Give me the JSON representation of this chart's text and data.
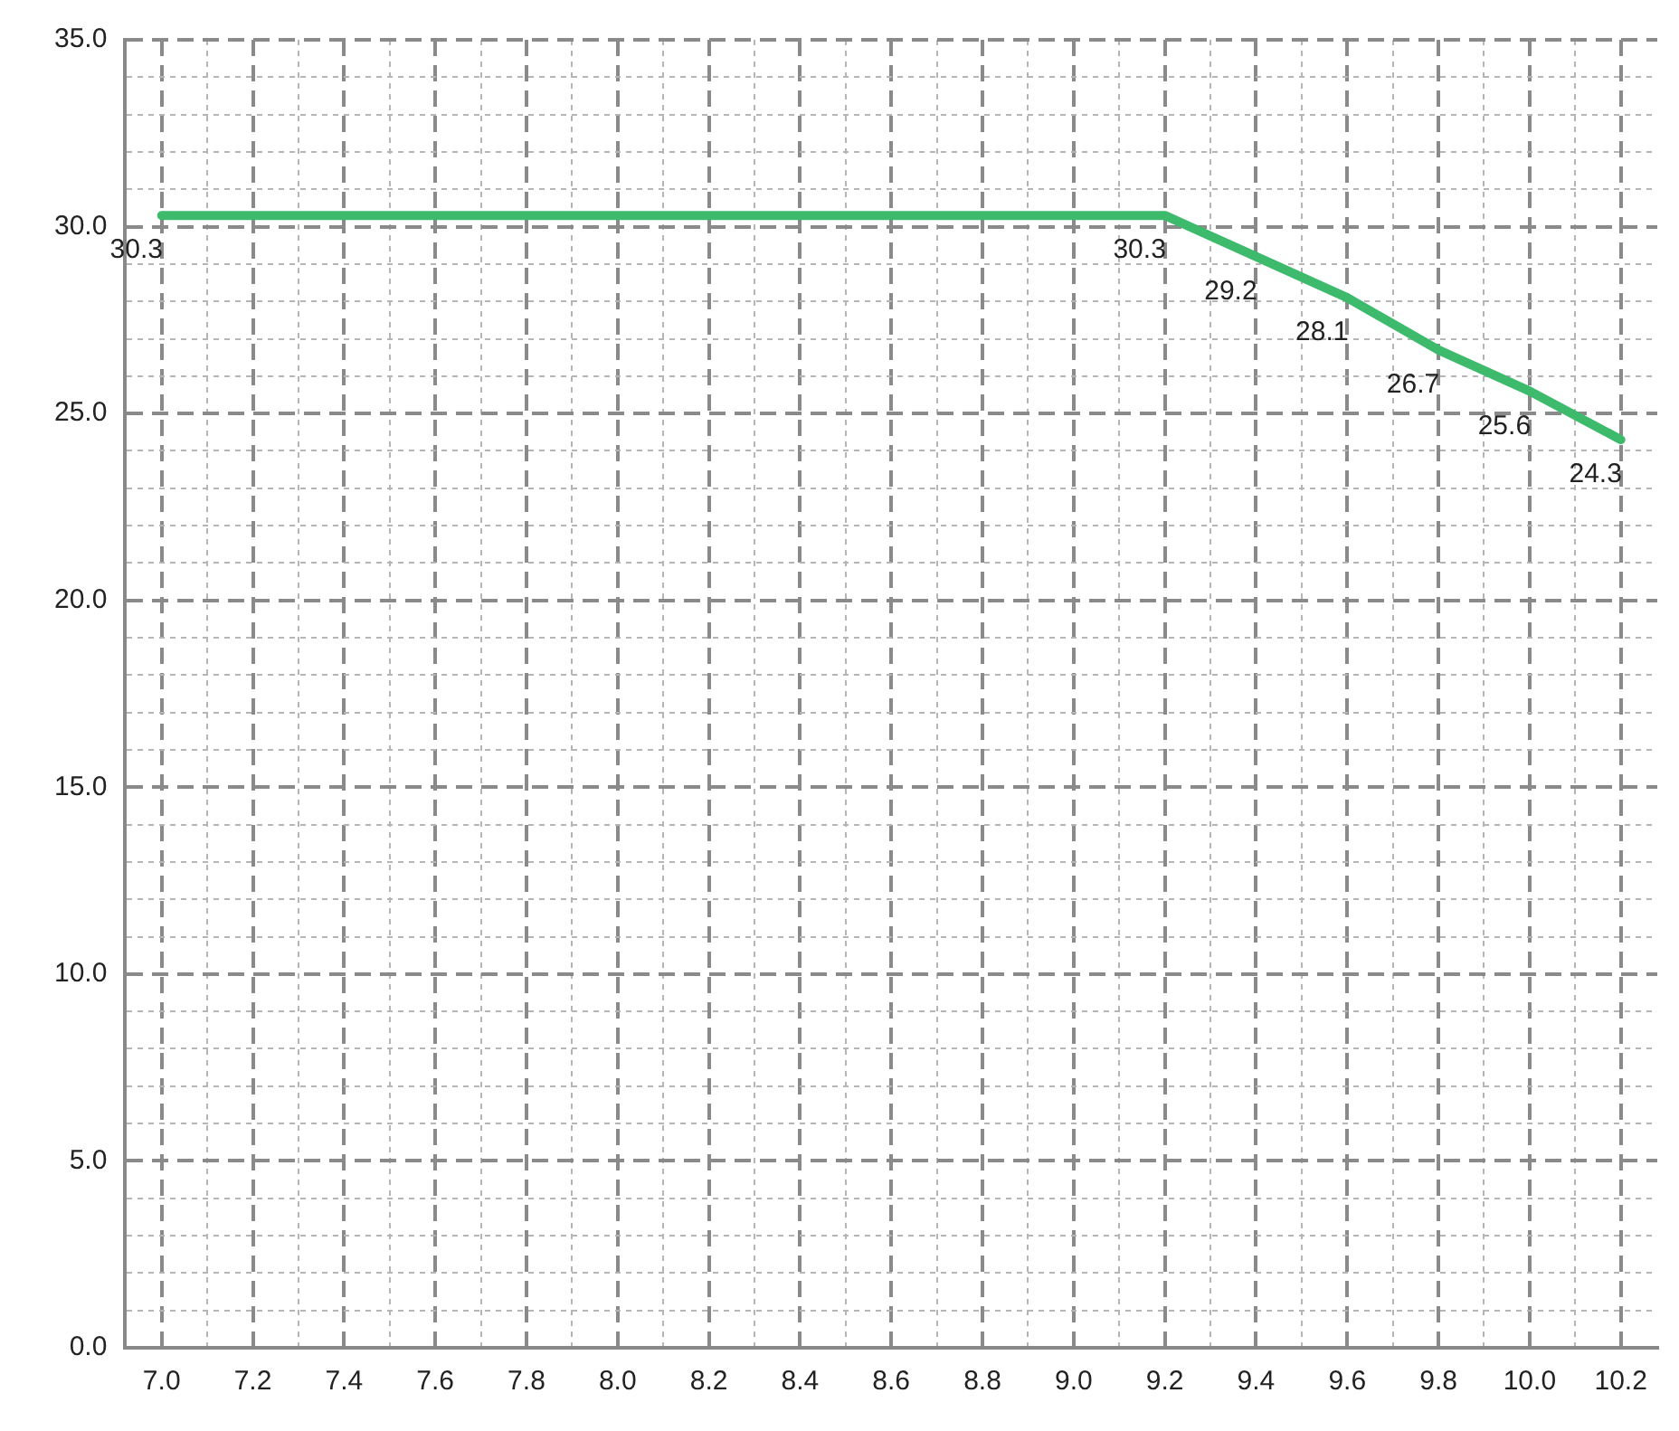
{
  "chart_data": {
    "type": "line",
    "x": [
      7.0,
      9.2,
      9.4,
      9.6,
      9.8,
      10.0,
      10.2
    ],
    "series": [
      {
        "color": "#3dba6c",
        "values": [
          30.3,
          30.3,
          29.2,
          28.1,
          26.7,
          25.6,
          24.3
        ]
      }
    ],
    "data_labels": true,
    "xlim": [
      6.92,
      10.28
    ],
    "xticks": [
      {
        "value": 7.0,
        "label": "7.0"
      },
      {
        "value": 7.1,
        "label": null
      },
      {
        "value": 7.2,
        "label": "7.2"
      },
      {
        "value": 7.3,
        "label": null
      },
      {
        "value": 7.4,
        "label": "7.4"
      },
      {
        "value": 7.5,
        "label": null
      },
      {
        "value": 7.6,
        "label": "7.6"
      },
      {
        "value": 7.7,
        "label": null
      },
      {
        "value": 7.8,
        "label": "7.8"
      },
      {
        "value": 7.9,
        "label": null
      },
      {
        "value": 8.0,
        "label": "8.0"
      },
      {
        "value": 8.1,
        "label": null
      },
      {
        "value": 8.2,
        "label": "8.2"
      },
      {
        "value": 8.3,
        "label": null
      },
      {
        "value": 8.4,
        "label": "8.4"
      },
      {
        "value": 8.5,
        "label": null
      },
      {
        "value": 8.6,
        "label": "8.6"
      },
      {
        "value": 8.7,
        "label": null
      },
      {
        "value": 8.8,
        "label": "8.8"
      },
      {
        "value": 8.9,
        "label": null
      },
      {
        "value": 9.0,
        "label": "9.0"
      },
      {
        "value": 9.1,
        "label": null
      },
      {
        "value": 9.2,
        "label": "9.2"
      },
      {
        "value": 9.3,
        "label": null
      },
      {
        "value": 9.4,
        "label": "9.4"
      },
      {
        "value": 9.5,
        "label": null
      },
      {
        "value": 9.6,
        "label": "9.6"
      },
      {
        "value": 9.7,
        "label": null
      },
      {
        "value": 9.8,
        "label": "9.8"
      },
      {
        "value": 9.9,
        "label": null
      },
      {
        "value": 10.0,
        "label": "10.0"
      },
      {
        "value": 10.1,
        "label": null
      },
      {
        "value": 10.2,
        "label": "10.2"
      }
    ],
    "ylim": [
      0,
      35
    ],
    "yticks": [
      {
        "value": 0,
        "label": "0.0"
      },
      {
        "value": 1,
        "label": null
      },
      {
        "value": 2,
        "label": null
      },
      {
        "value": 3,
        "label": null
      },
      {
        "value": 4,
        "label": null
      },
      {
        "value": 5,
        "label": "5.0"
      },
      {
        "value": 6,
        "label": null
      },
      {
        "value": 7,
        "label": null
      },
      {
        "value": 8,
        "label": null
      },
      {
        "value": 9,
        "label": null
      },
      {
        "value": 10,
        "label": "10.0"
      },
      {
        "value": 11,
        "label": null
      },
      {
        "value": 12,
        "label": null
      },
      {
        "value": 13,
        "label": null
      },
      {
        "value": 14,
        "label": null
      },
      {
        "value": 15,
        "label": "15.0"
      },
      {
        "value": 16,
        "label": null
      },
      {
        "value": 17,
        "label": null
      },
      {
        "value": 18,
        "label": null
      },
      {
        "value": 19,
        "label": null
      },
      {
        "value": 20,
        "label": "20.0"
      },
      {
        "value": 21,
        "label": null
      },
      {
        "value": 22,
        "label": null
      },
      {
        "value": 23,
        "label": null
      },
      {
        "value": 24,
        "label": null
      },
      {
        "value": 25,
        "label": "25.0"
      },
      {
        "value": 26,
        "label": null
      },
      {
        "value": 27,
        "label": null
      },
      {
        "value": 28,
        "label": null
      },
      {
        "value": 29,
        "label": null
      },
      {
        "value": 30,
        "label": "30.0"
      },
      {
        "value": 31,
        "label": null
      },
      {
        "value": 32,
        "label": null
      },
      {
        "value": 33,
        "label": null
      },
      {
        "value": 34,
        "label": null
      },
      {
        "value": 35,
        "label": "35.0"
      }
    ],
    "grid": true,
    "marker": "none",
    "line_style": "solid",
    "legend": false
  }
}
